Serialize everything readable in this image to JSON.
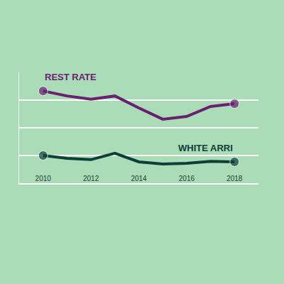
{
  "chart_data": {
    "type": "line",
    "x": [
      2010,
      2011,
      2012,
      2013,
      2014,
      2015,
      2016,
      2017,
      2018
    ],
    "series": [
      {
        "name": "REST RATE",
        "color": "#6a1f6f",
        "values": [
          3.33,
          3.15,
          3.03,
          3.15,
          2.72,
          2.31,
          2.41,
          2.77,
          2.87
        ]
      },
      {
        "name": "WHITE ARRI",
        "color": "#0f3d37",
        "values": [
          1.0,
          0.9,
          0.85,
          1.08,
          0.77,
          0.69,
          0.72,
          0.79,
          0.77
        ]
      }
    ],
    "xlim": [
      2009,
      2019
    ],
    "xticks": [
      2010,
      2012,
      2014,
      2016,
      2018
    ],
    "ylim": [
      0,
      4
    ],
    "yticks": [
      0,
      1,
      2,
      3
    ],
    "grid": true,
    "tick_labels": "x",
    "marker": "endpoints"
  }
}
